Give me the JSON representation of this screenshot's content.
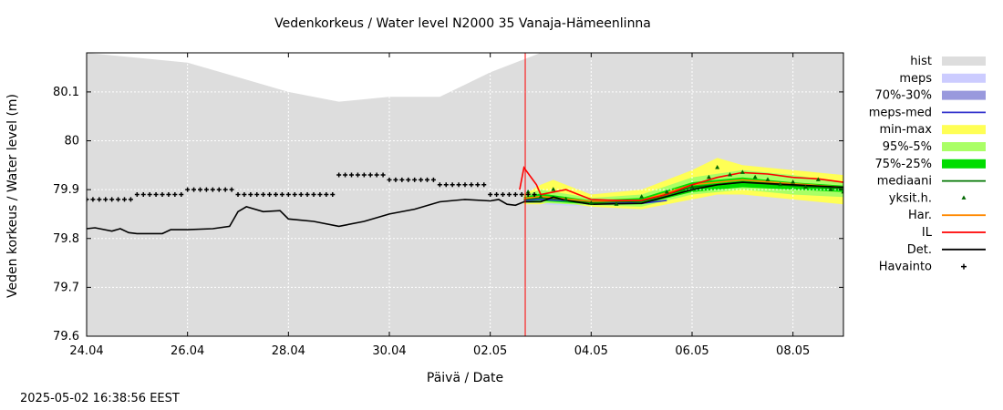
{
  "chart_data": {
    "type": "area",
    "title": "Vedenkorkeus / Water level   N2000 35 Vanaja-Hämeenlinna",
    "xlabel": "Päivä / Date",
    "ylabel": "Veden korkeus / Water level (m)",
    "timestamp": "2025-05-02 16:38:56 EEST",
    "x_range": [
      "2025-04-24",
      "2025-05-09"
    ],
    "ylim": [
      79.6,
      80.18
    ],
    "x_ticks": [
      {
        "x": "2025-04-24",
        "label": "24.04"
      },
      {
        "x": "2025-04-26",
        "label": "26.04"
      },
      {
        "x": "2025-04-28",
        "label": "28.04"
      },
      {
        "x": "2025-04-30",
        "label": "30.04"
      },
      {
        "x": "2025-05-02",
        "label": "02.05"
      },
      {
        "x": "2025-05-04",
        "label": "04.05"
      },
      {
        "x": "2025-05-06",
        "label": "06.05"
      },
      {
        "x": "2025-05-08",
        "label": "08.05"
      }
    ],
    "y_ticks": [
      {
        "y": 79.6,
        "label": "79.6"
      },
      {
        "y": 79.7,
        "label": "79.7"
      },
      {
        "y": 79.8,
        "label": "79.8"
      },
      {
        "y": 79.9,
        "label": "79.9"
      },
      {
        "y": 80.0,
        "label": "80"
      },
      {
        "y": 80.1,
        "label": "80.1"
      }
    ],
    "grid": true,
    "legend_position": "right",
    "now_line": {
      "x": "2025-05-02 16:38",
      "color": "#ff0000"
    },
    "series": [
      {
        "name": "hist",
        "kind": "band",
        "color": "#dddddd",
        "x": [
          "2025-04-24",
          "2025-04-25",
          "2025-04-26",
          "2025-04-27",
          "2025-04-28",
          "2025-04-29",
          "2025-04-30",
          "2025-05-01",
          "2025-05-02",
          "2025-05-03",
          "2025-05-09"
        ],
        "lower": [
          79.6,
          79.6,
          79.6,
          79.6,
          79.6,
          79.6,
          79.6,
          79.6,
          79.6,
          79.6,
          79.6
        ],
        "upper": [
          80.18,
          80.17,
          80.16,
          80.13,
          80.1,
          80.08,
          80.09,
          80.09,
          80.14,
          80.18,
          80.18
        ]
      },
      {
        "name": "meps",
        "kind": "band",
        "color": "#ccccff",
        "x": [
          "2025-05-02 16:00",
          "2025-05-03",
          "2025-05-04",
          "2025-05-05",
          "2025-05-05 12:00"
        ],
        "lower": [
          79.87,
          79.87,
          79.865,
          79.865,
          79.87
        ],
        "upper": [
          79.89,
          79.895,
          79.885,
          79.88,
          79.885
        ]
      },
      {
        "name": "70%-30%",
        "kind": "band",
        "color": "#9999dd",
        "x": [
          "2025-05-02 16:00",
          "2025-05-03",
          "2025-05-04",
          "2025-05-05",
          "2025-05-05 12:00"
        ],
        "lower": [
          79.872,
          79.875,
          79.87,
          79.868,
          79.875
        ],
        "upper": [
          79.885,
          79.89,
          79.88,
          79.877,
          79.882
        ]
      },
      {
        "name": "meps-med",
        "kind": "line",
        "color": "#3333cc",
        "x": [
          "2025-05-02 16:00",
          "2025-05-03",
          "2025-05-04",
          "2025-05-05",
          "2025-05-05 12:00"
        ],
        "y": [
          79.878,
          79.88,
          79.875,
          79.872,
          79.878
        ]
      },
      {
        "name": "min-max",
        "kind": "band",
        "color": "#ffff55",
        "x": [
          "2025-05-02 16:00",
          "2025-05-03",
          "2025-05-03 06:00",
          "2025-05-04",
          "2025-05-05",
          "2025-05-06",
          "2025-05-06 12:00",
          "2025-05-07",
          "2025-05-08",
          "2025-05-09"
        ],
        "lower": [
          79.87,
          79.87,
          79.875,
          79.865,
          79.86,
          79.88,
          79.89,
          79.89,
          79.88,
          79.87
        ],
        "upper": [
          79.89,
          79.91,
          79.92,
          79.89,
          79.9,
          79.94,
          79.965,
          79.95,
          79.94,
          79.93
        ]
      },
      {
        "name": "95%-5%",
        "kind": "band",
        "color": "#aaff66",
        "x": [
          "2025-05-02 16:00",
          "2025-05-03",
          "2025-05-04",
          "2025-05-05",
          "2025-05-06",
          "2025-05-07",
          "2025-05-08",
          "2025-05-09"
        ],
        "lower": [
          79.872,
          79.873,
          79.868,
          79.865,
          79.89,
          79.9,
          79.89,
          79.885
        ],
        "upper": [
          79.888,
          79.9,
          79.883,
          79.89,
          79.925,
          79.94,
          79.93,
          79.915
        ]
      },
      {
        "name": "75%-25%",
        "kind": "band",
        "color": "#00dd00",
        "x": [
          "2025-05-02 16:00",
          "2025-05-03",
          "2025-05-04",
          "2025-05-05",
          "2025-05-06",
          "2025-05-07",
          "2025-05-08",
          "2025-05-09"
        ],
        "lower": [
          79.875,
          79.877,
          79.87,
          79.87,
          79.895,
          79.905,
          79.9,
          79.895
        ],
        "upper": [
          79.885,
          79.892,
          79.878,
          79.883,
          79.915,
          79.925,
          79.915,
          79.908
        ]
      },
      {
        "name": "mediaani",
        "kind": "line",
        "color": "#007700",
        "x": [
          "2025-05-02 16:00",
          "2025-05-03",
          "2025-05-04",
          "2025-05-05",
          "2025-05-06",
          "2025-05-07",
          "2025-05-08",
          "2025-05-09"
        ],
        "y": [
          79.88,
          79.884,
          79.874,
          79.876,
          79.905,
          79.915,
          79.908,
          79.902
        ]
      },
      {
        "name": "yksit.h.",
        "kind": "scatter",
        "color": "#006600",
        "x": [
          "2025-05-02 18:00",
          "2025-05-03",
          "2025-05-03 06:00",
          "2025-05-03 12:00",
          "2025-05-04",
          "2025-05-04 12:00",
          "2025-05-05",
          "2025-05-05 12:00",
          "2025-05-06",
          "2025-05-06 08:00",
          "2025-05-06 12:00",
          "2025-05-06 18:00",
          "2025-05-07",
          "2025-05-07 06:00",
          "2025-05-07 12:00",
          "2025-05-07 18:00",
          "2025-05-08",
          "2025-05-08 06:00",
          "2025-05-08 12:00",
          "2025-05-08 18:00",
          "2025-05-09"
        ],
        "y": [
          79.895,
          79.885,
          79.9,
          79.88,
          79.872,
          79.87,
          79.885,
          79.895,
          79.905,
          79.925,
          79.945,
          79.93,
          79.935,
          79.925,
          79.92,
          79.91,
          79.915,
          79.905,
          79.92,
          79.9,
          79.895
        ]
      },
      {
        "name": "Har.",
        "kind": "line",
        "color": "#ff8800",
        "x": [
          "2025-05-02 16:00",
          "2025-05-03",
          "2025-05-04",
          "2025-05-05",
          "2025-05-06",
          "2025-05-07",
          "2025-05-08",
          "2025-05-09"
        ],
        "y": [
          79.882,
          79.886,
          79.876,
          79.878,
          79.91,
          79.92,
          79.912,
          79.905
        ]
      },
      {
        "name": "IL",
        "kind": "line",
        "color": "#ff0000",
        "x": [
          "2025-05-02 14:00",
          "2025-05-02 16:00",
          "2025-05-02 22:00",
          "2025-05-03",
          "2025-05-03 06:00",
          "2025-05-03 12:00",
          "2025-05-04",
          "2025-05-04 12:00",
          "2025-05-05",
          "2025-05-05 12:00",
          "2025-05-06",
          "2025-05-06 12:00",
          "2025-05-07",
          "2025-05-07 12:00",
          "2025-05-08",
          "2025-05-08 12:00",
          "2025-05-09"
        ],
        "y": [
          79.9,
          79.945,
          79.91,
          79.89,
          79.895,
          79.9,
          79.88,
          79.878,
          79.878,
          79.89,
          79.91,
          79.925,
          79.935,
          79.932,
          79.925,
          79.922,
          79.915
        ]
      },
      {
        "name": "Det.",
        "kind": "line",
        "color": "#000000",
        "x": [
          "2025-04-24",
          "2025-04-24 04:00",
          "2025-04-24 12:00",
          "2025-04-24 16:00",
          "2025-04-24 20:00",
          "2025-04-25",
          "2025-04-25 12:00",
          "2025-04-25 16:00",
          "2025-04-26",
          "2025-04-26 12:00",
          "2025-04-26 20:00",
          "2025-04-27",
          "2025-04-27 04:00",
          "2025-04-27 12:00",
          "2025-04-27 20:00",
          "2025-04-28",
          "2025-04-28 12:00",
          "2025-04-29",
          "2025-04-29 12:00",
          "2025-04-30",
          "2025-04-30 12:00",
          "2025-05-01",
          "2025-05-01 12:00",
          "2025-05-02",
          "2025-05-02 04:00",
          "2025-05-02 08:00",
          "2025-05-02 12:00",
          "2025-05-02 16:00",
          "2025-05-03",
          "2025-05-03 06:00",
          "2025-05-03 12:00",
          "2025-05-04",
          "2025-05-05",
          "2025-05-06",
          "2025-05-06 12:00",
          "2025-05-07",
          "2025-05-08",
          "2025-05-09"
        ],
        "y": [
          79.82,
          79.822,
          79.815,
          79.82,
          79.812,
          79.81,
          79.81,
          79.818,
          79.818,
          79.82,
          79.825,
          79.855,
          79.865,
          79.855,
          79.857,
          79.84,
          79.835,
          79.825,
          79.835,
          79.85,
          79.86,
          79.875,
          79.88,
          79.877,
          79.88,
          79.87,
          79.868,
          79.875,
          79.875,
          79.885,
          79.878,
          79.87,
          79.872,
          79.9,
          79.91,
          79.915,
          79.91,
          79.905
        ]
      },
      {
        "name": "Havainto",
        "kind": "scatter",
        "color": "#000000",
        "x": [
          "2025-04-24",
          "2025-04-24 12:00",
          "2025-04-25",
          "2025-04-25 12:00",
          "2025-04-26",
          "2025-04-26 12:00",
          "2025-04-27",
          "2025-04-27 12:00",
          "2025-04-28",
          "2025-04-28 12:00",
          "2025-04-29",
          "2025-04-29 12:00",
          "2025-04-30",
          "2025-04-30 12:00",
          "2025-05-01",
          "2025-05-01 12:00",
          "2025-05-02",
          "2025-05-02 12:00"
        ],
        "y": [
          79.88,
          79.88,
          79.89,
          79.89,
          79.9,
          79.9,
          79.89,
          79.89,
          79.89,
          79.89,
          79.93,
          79.93,
          79.92,
          79.92,
          79.91,
          79.91,
          79.89,
          79.89
        ]
      }
    ]
  }
}
